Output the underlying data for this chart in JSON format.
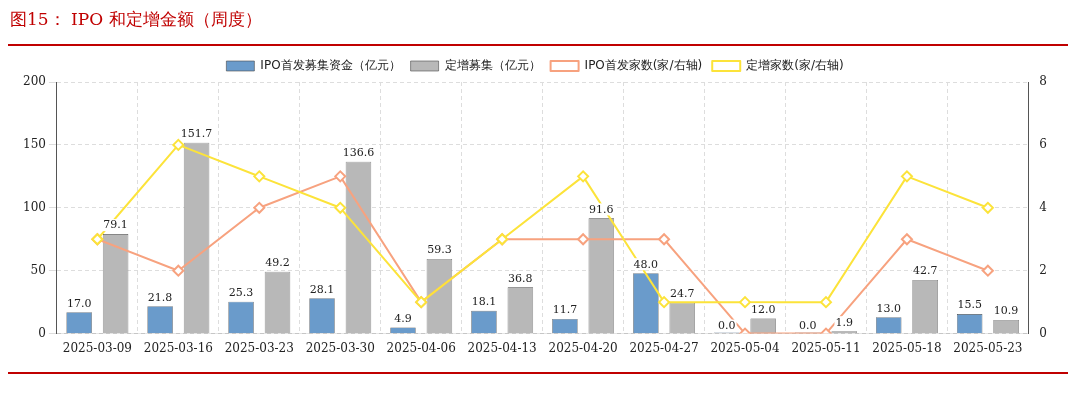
{
  "chart_data": {
    "type": "bar",
    "title": "图15：  IPO 和定增金额（周度）",
    "categories": [
      "2025-03-09",
      "2025-03-16",
      "2025-03-23",
      "2025-03-30",
      "2025-04-06",
      "2025-04-13",
      "2025-04-20",
      "2025-04-27",
      "2025-05-04",
      "2025-05-11",
      "2025-05-18",
      "2025-05-23"
    ],
    "series": [
      {
        "name": "IPO首发募集资金（亿元）",
        "color": "#6a9bcb",
        "values": [
          17.0,
          21.8,
          25.3,
          28.1,
          4.9,
          18.1,
          11.7,
          48.0,
          0.0,
          0.0,
          13.0,
          15.5
        ],
        "value_labels": [
          "17.0",
          "21.8",
          "25.3",
          "28.1",
          "4.9",
          "18.1",
          "11.7",
          "48.0",
          "0.0",
          "0.0",
          "13.0",
          "15.5"
        ]
      },
      {
        "name": "定增募集（亿元）",
        "color": "#b8b8b8",
        "values": [
          79.1,
          151.7,
          49.2,
          136.6,
          59.3,
          36.8,
          91.6,
          24.7,
          12.0,
          1.9,
          42.7,
          10.9
        ],
        "value_labels": [
          "79.1",
          "151.7",
          "49.2",
          "136.6",
          "59.3",
          "36.8",
          "91.6",
          "24.7",
          "12.0",
          "1.9",
          "42.7",
          "10.9"
        ]
      },
      {
        "name": "IPO首发家数(家/右轴)",
        "type": "line",
        "axis": "y2",
        "color": "#f7a27f",
        "values": [
          3,
          2,
          4,
          5,
          1,
          3,
          3,
          3,
          0,
          0,
          3,
          2
        ]
      },
      {
        "name": "定增家数(家/右轴)",
        "type": "line",
        "axis": "y2",
        "color": "#fce33a",
        "values": [
          3,
          6,
          5,
          4,
          1,
          3,
          5,
          1,
          1,
          1,
          5,
          4
        ]
      }
    ],
    "ylim": [
      0,
      200
    ],
    "yticks": [
      0,
      50,
      100,
      150,
      200
    ],
    "y2lim": [
      0,
      8
    ],
    "y2ticks": [
      0,
      2,
      4,
      6,
      8
    ],
    "grid": true,
    "legend": "top",
    "marker": "diamond",
    "line_style": "solid"
  }
}
